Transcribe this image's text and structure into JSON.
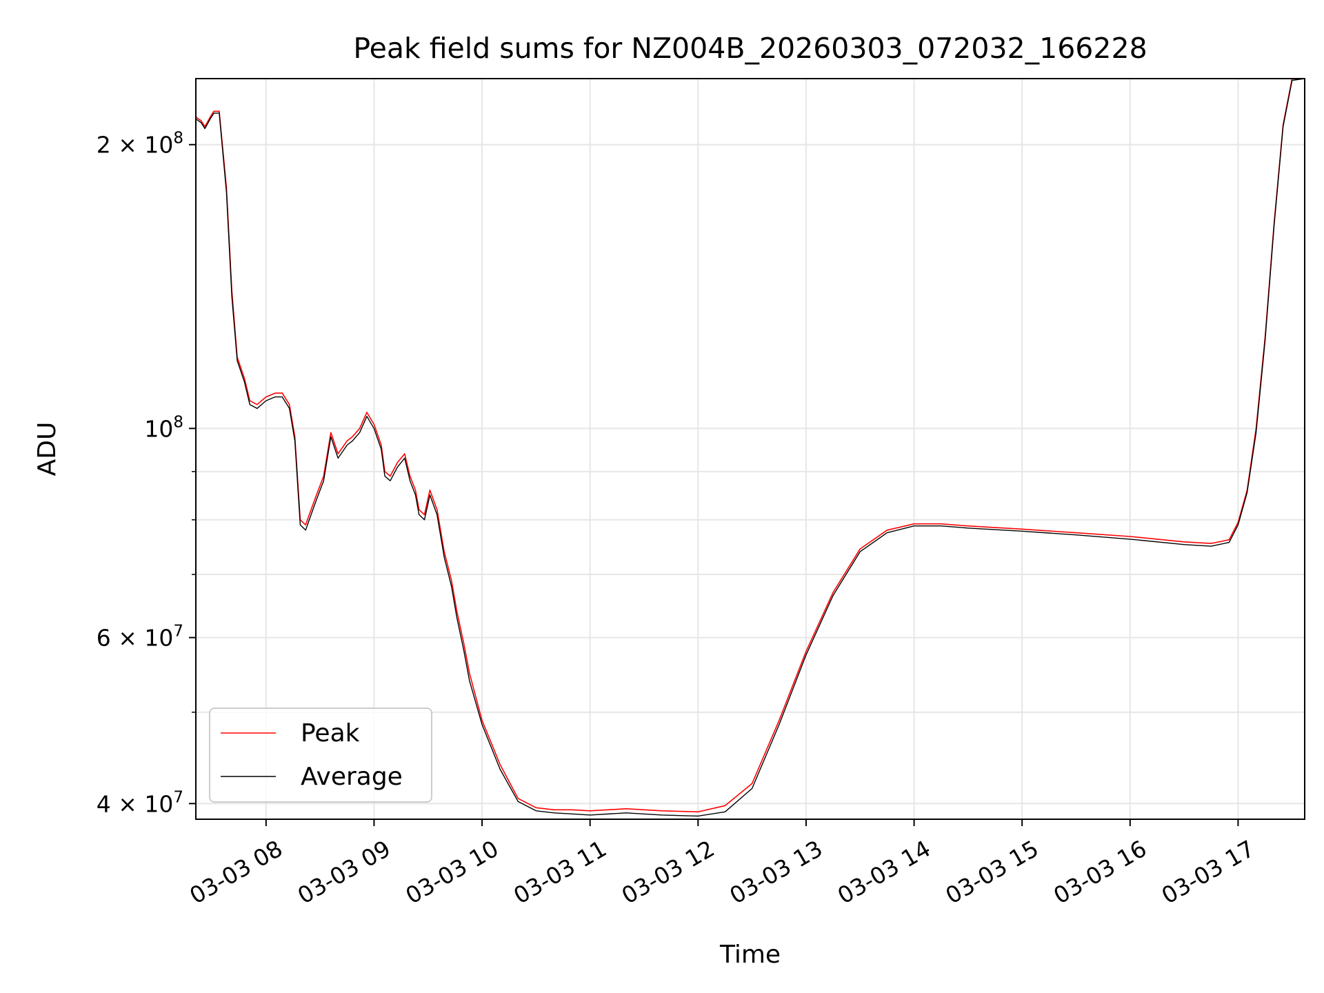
{
  "chart_data": {
    "type": "line",
    "title": "Peak field sums for NZ004B_20260303_072032_166228",
    "xlabel": "Time",
    "ylabel": "ADU",
    "y_scale": "log",
    "ylim": [
      38500000,
      235000000
    ],
    "xlim": [
      "2026-03-03 07:21",
      "2026-03-03 17:37"
    ],
    "grid": true,
    "legend_position": "lower-left",
    "x_ticks": [
      {
        "value": "2026-03-03 08:00",
        "label": "03-03 08"
      },
      {
        "value": "2026-03-03 09:00",
        "label": "03-03 09"
      },
      {
        "value": "2026-03-03 10:00",
        "label": "03-03 10"
      },
      {
        "value": "2026-03-03 11:00",
        "label": "03-03 11"
      },
      {
        "value": "2026-03-03 12:00",
        "label": "03-03 12"
      },
      {
        "value": "2026-03-03 13:00",
        "label": "03-03 13"
      },
      {
        "value": "2026-03-03 14:00",
        "label": "03-03 14"
      },
      {
        "value": "2026-03-03 15:00",
        "label": "03-03 15"
      },
      {
        "value": "2026-03-03 16:00",
        "label": "03-03 16"
      },
      {
        "value": "2026-03-03 17:00",
        "label": "03-03 17"
      }
    ],
    "y_ticks": [
      {
        "value": 40000000,
        "base": "4 × 10",
        "exp": "7"
      },
      {
        "value": 60000000,
        "base": "6 × 10",
        "exp": "7"
      },
      {
        "value": 100000000,
        "base": "10",
        "exp": "8"
      },
      {
        "value": 200000000,
        "base": "2 × 10",
        "exp": "8"
      }
    ],
    "y_minor_ticks": [
      50000000,
      70000000,
      80000000,
      90000000
    ],
    "series": [
      {
        "name": "Peak",
        "color": "#ff0000",
        "x": [
          "2026-03-03 07:21",
          "2026-03-03 07:24",
          "2026-03-03 07:26",
          "2026-03-03 07:29",
          "2026-03-03 07:31",
          "2026-03-03 07:34",
          "2026-03-03 07:38",
          "2026-03-03 07:41",
          "2026-03-03 07:44",
          "2026-03-03 07:48",
          "2026-03-03 07:51",
          "2026-03-03 07:55",
          "2026-03-03 08:00",
          "2026-03-03 08:05",
          "2026-03-03 08:09",
          "2026-03-03 08:13",
          "2026-03-03 08:16",
          "2026-03-03 08:19",
          "2026-03-03 08:22",
          "2026-03-03 08:25",
          "2026-03-03 08:28",
          "2026-03-03 08:32",
          "2026-03-03 08:36",
          "2026-03-03 08:40",
          "2026-03-03 08:45",
          "2026-03-03 08:48",
          "2026-03-03 08:52",
          "2026-03-03 08:56",
          "2026-03-03 09:00",
          "2026-03-03 09:04",
          "2026-03-03 09:06",
          "2026-03-03 09:09",
          "2026-03-03 09:13",
          "2026-03-03 09:17",
          "2026-03-03 09:20",
          "2026-03-03 09:23",
          "2026-03-03 09:25",
          "2026-03-03 09:28",
          "2026-03-03 09:31",
          "2026-03-03 09:35",
          "2026-03-03 09:39",
          "2026-03-03 09:43",
          "2026-03-03 09:46",
          "2026-03-03 09:50",
          "2026-03-03 09:53",
          "2026-03-03 10:00",
          "2026-03-03 10:10",
          "2026-03-03 10:20",
          "2026-03-03 10:30",
          "2026-03-03 10:40",
          "2026-03-03 10:50",
          "2026-03-03 11:00",
          "2026-03-03 11:20",
          "2026-03-03 11:40",
          "2026-03-03 12:00",
          "2026-03-03 12:15",
          "2026-03-03 12:30",
          "2026-03-03 12:45",
          "2026-03-03 13:00",
          "2026-03-03 13:15",
          "2026-03-03 13:30",
          "2026-03-03 13:45",
          "2026-03-03 14:00",
          "2026-03-03 14:15",
          "2026-03-03 14:30",
          "2026-03-03 15:00",
          "2026-03-03 15:30",
          "2026-03-03 16:00",
          "2026-03-03 16:30",
          "2026-03-03 16:45",
          "2026-03-03 16:55",
          "2026-03-03 17:00",
          "2026-03-03 17:05",
          "2026-03-03 17:10",
          "2026-03-03 17:15",
          "2026-03-03 17:20",
          "2026-03-03 17:25",
          "2026-03-03 17:30",
          "2026-03-03 17:37"
        ],
        "y": [
          214000000,
          212000000,
          209000000,
          214000000,
          217000000,
          217000000,
          180000000,
          140000000,
          119000000,
          113000000,
          107000000,
          106000000,
          108000000,
          109000000,
          109000000,
          106000000,
          98000000,
          80000000,
          79000000,
          82000000,
          85000000,
          89000000,
          99000000,
          94000000,
          97000000,
          98000000,
          100000000,
          104000000,
          101000000,
          96000000,
          90000000,
          89000000,
          92000000,
          94000000,
          89000000,
          86000000,
          82000000,
          81000000,
          86000000,
          82000000,
          74000000,
          69000000,
          64000000,
          59000000,
          55000000,
          49000000,
          44000000,
          40500000,
          39600000,
          39400000,
          39400000,
          39300000,
          39500000,
          39300000,
          39200000,
          39800000,
          42000000,
          49000000,
          58000000,
          67000000,
          74500000,
          78000000,
          79200000,
          79200000,
          78800000,
          78200000,
          77500000,
          76800000,
          75800000,
          75500000,
          76200000,
          79500000,
          86000000,
          100000000,
          125000000,
          165000000,
          210000000,
          235000000,
          235000000
        ]
      },
      {
        "name": "Average",
        "color": "#000000",
        "x": [
          "2026-03-03 07:21",
          "2026-03-03 07:24",
          "2026-03-03 07:26",
          "2026-03-03 07:29",
          "2026-03-03 07:31",
          "2026-03-03 07:34",
          "2026-03-03 07:38",
          "2026-03-03 07:41",
          "2026-03-03 07:44",
          "2026-03-03 07:48",
          "2026-03-03 07:51",
          "2026-03-03 07:55",
          "2026-03-03 08:00",
          "2026-03-03 08:05",
          "2026-03-03 08:09",
          "2026-03-03 08:13",
          "2026-03-03 08:16",
          "2026-03-03 08:19",
          "2026-03-03 08:22",
          "2026-03-03 08:25",
          "2026-03-03 08:28",
          "2026-03-03 08:32",
          "2026-03-03 08:36",
          "2026-03-03 08:40",
          "2026-03-03 08:45",
          "2026-03-03 08:48",
          "2026-03-03 08:52",
          "2026-03-03 08:56",
          "2026-03-03 09:00",
          "2026-03-03 09:04",
          "2026-03-03 09:06",
          "2026-03-03 09:09",
          "2026-03-03 09:13",
          "2026-03-03 09:17",
          "2026-03-03 09:20",
          "2026-03-03 09:23",
          "2026-03-03 09:25",
          "2026-03-03 09:28",
          "2026-03-03 09:31",
          "2026-03-03 09:35",
          "2026-03-03 09:39",
          "2026-03-03 09:43",
          "2026-03-03 09:46",
          "2026-03-03 09:50",
          "2026-03-03 09:53",
          "2026-03-03 10:00",
          "2026-03-03 10:10",
          "2026-03-03 10:20",
          "2026-03-03 10:30",
          "2026-03-03 10:40",
          "2026-03-03 10:50",
          "2026-03-03 11:00",
          "2026-03-03 11:20",
          "2026-03-03 11:40",
          "2026-03-03 12:00",
          "2026-03-03 12:15",
          "2026-03-03 12:30",
          "2026-03-03 12:45",
          "2026-03-03 13:00",
          "2026-03-03 13:15",
          "2026-03-03 13:30",
          "2026-03-03 13:45",
          "2026-03-03 14:00",
          "2026-03-03 14:15",
          "2026-03-03 14:30",
          "2026-03-03 15:00",
          "2026-03-03 15:30",
          "2026-03-03 16:00",
          "2026-03-03 16:30",
          "2026-03-03 16:45",
          "2026-03-03 16:55",
          "2026-03-03 17:00",
          "2026-03-03 17:05",
          "2026-03-03 17:10",
          "2026-03-03 17:15",
          "2026-03-03 17:20",
          "2026-03-03 17:25",
          "2026-03-03 17:30",
          "2026-03-03 17:37"
        ],
        "y": [
          213000000,
          211000000,
          208000000,
          213000000,
          216000000,
          216000000,
          178000000,
          138000000,
          118000000,
          112000000,
          106000000,
          105000000,
          107000000,
          108000000,
          108000000,
          105000000,
          97000000,
          79000000,
          78000000,
          81000000,
          84000000,
          88000000,
          98000000,
          93000000,
          96000000,
          97000000,
          99000000,
          103000000,
          100000000,
          95000000,
          89000000,
          88000000,
          91000000,
          93000000,
          88000000,
          85000000,
          81000000,
          80000000,
          85000000,
          81000000,
          73000000,
          68000000,
          63000000,
          58000000,
          54000000,
          48500000,
          43500000,
          40200000,
          39300000,
          39100000,
          39000000,
          38900000,
          39100000,
          38900000,
          38800000,
          39200000,
          41500000,
          48500000,
          57500000,
          66500000,
          74000000,
          77500000,
          78800000,
          78800000,
          78400000,
          77800000,
          77100000,
          76300000,
          75300000,
          75000000,
          75700000,
          79000000,
          85500000,
          99000000,
          124000000,
          164000000,
          209000000,
          234000000,
          235000000
        ]
      }
    ]
  }
}
